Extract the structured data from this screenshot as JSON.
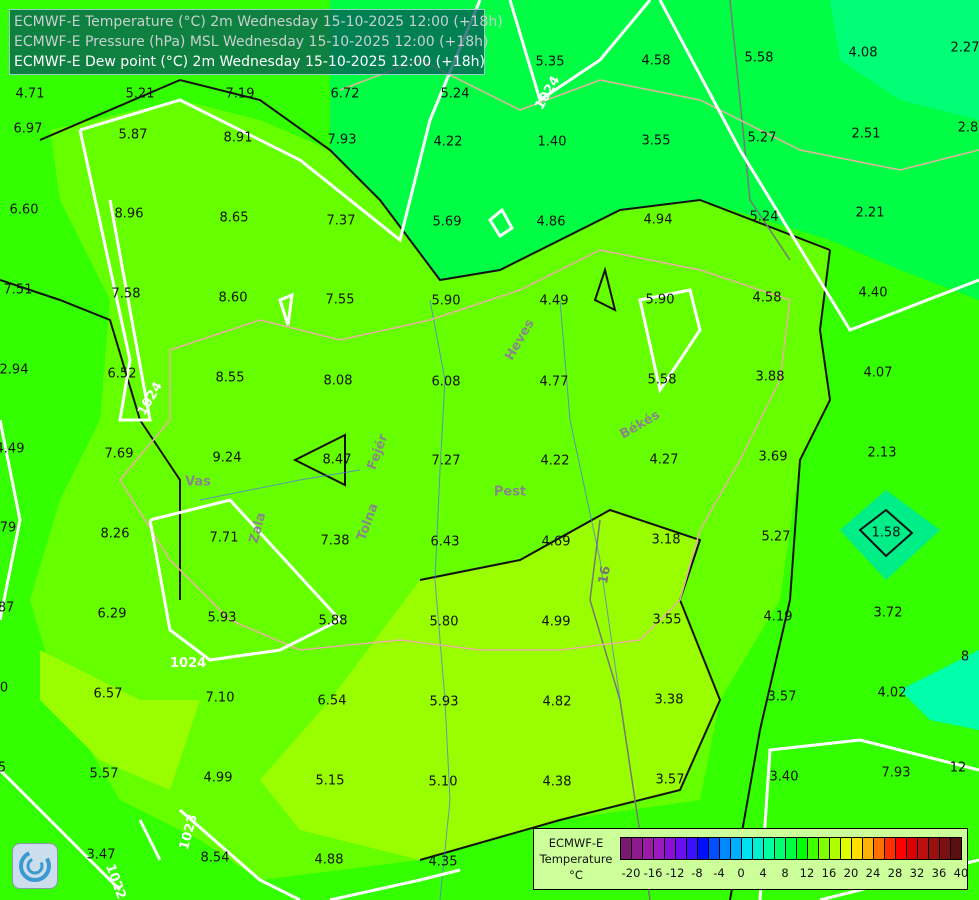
{
  "header": {
    "lines": [
      "ECMWF-E Temperature (°C) 2m Wednesday 15-10-2025 12:00 (+18h)",
      "ECMWF-E Pressure (hPa) MSL Wednesday 15-10-2025 12:00 (+18h)",
      "ECMWF-E Dew point (°C) 2m Wednesday 15-10-2025 12:00 (+18h)"
    ]
  },
  "dewpoint_labels": [
    "4.71",
    "5.21",
    "7.19",
    "6.72",
    "5.24",
    "5.35",
    "4.58",
    "5.58",
    "4.08",
    "2.27",
    "6.97",
    "5.87",
    "8.91",
    "7.93",
    "4.22",
    "1.40",
    "3.55",
    "5.27",
    "2.51",
    "2.8",
    "6.60",
    "8.96",
    "8.65",
    "7.37",
    "5.69",
    "4.86",
    "4.94",
    "5.24",
    "2.21",
    "7.51",
    "7.58",
    "8.60",
    "7.55",
    "5.90",
    "4.49",
    "5.90",
    "4.58",
    "4.40",
    "2.94",
    "6.52",
    "8.55",
    "8.08",
    "6.08",
    "4.77",
    "5.58",
    "3.88",
    "4.07",
    "4.49",
    "7.69",
    "9.24",
    "8.47",
    "7.27",
    "4.22",
    "4.27",
    "3.69",
    "2.13",
    "79",
    "8.26",
    "7.71",
    "7.38",
    "6.43",
    "4.69",
    "3.18",
    "5.27",
    "1.58",
    "87",
    "6.29",
    "5.93",
    "5.88",
    "5.80",
    "4.99",
    "3.55",
    "4.19",
    "3.72",
    "0",
    "6.57",
    "7.10",
    "6.54",
    "5.93",
    "4.82",
    "3.38",
    "3.57",
    "4.02",
    "8",
    "5",
    "5.57",
    "4.99",
    "5.15",
    "5.10",
    "4.38",
    "3.57",
    "3.40",
    "7.93",
    "12",
    "3.47",
    "8.54",
    "4.88",
    "4.35"
  ],
  "isobar_labels": [
    "1024",
    "1024",
    "1024",
    "1023",
    "1022"
  ],
  "temperature_contour_labels": [
    "16"
  ],
  "region_labels": [
    "Vas",
    "Pest",
    "Békés",
    "Heves",
    "Tolna",
    "Fejér",
    "Zala"
  ],
  "legend": {
    "title": [
      "ECMWF-E",
      "Temperature",
      "°C"
    ],
    "ticks": [
      "-20",
      "-16",
      "-12",
      "-8",
      "-4",
      "0",
      "4",
      "8",
      "12",
      "16",
      "20",
      "24",
      "28",
      "32",
      "36",
      "40"
    ],
    "colors": [
      "#7a1a6e",
      "#8e1a8e",
      "#9b1aa8",
      "#9a1ac0",
      "#8a10d8",
      "#6a10f0",
      "#3a10ff",
      "#0010ff",
      "#0050ff",
      "#0088ff",
      "#00b0ff",
      "#00e0f0",
      "#00f0d0",
      "#00ffa0",
      "#00ff70",
      "#00ff40",
      "#00ff00",
      "#40ff00",
      "#80ff00",
      "#b0ff00",
      "#e0ff00",
      "#ffe000",
      "#ffb000",
      "#ff7000",
      "#ff3000",
      "#ff0000",
      "#dd0000",
      "#bb1010",
      "#9a1010",
      "#7a1010",
      "#5a1010"
    ]
  },
  "logo": "ECMWF"
}
